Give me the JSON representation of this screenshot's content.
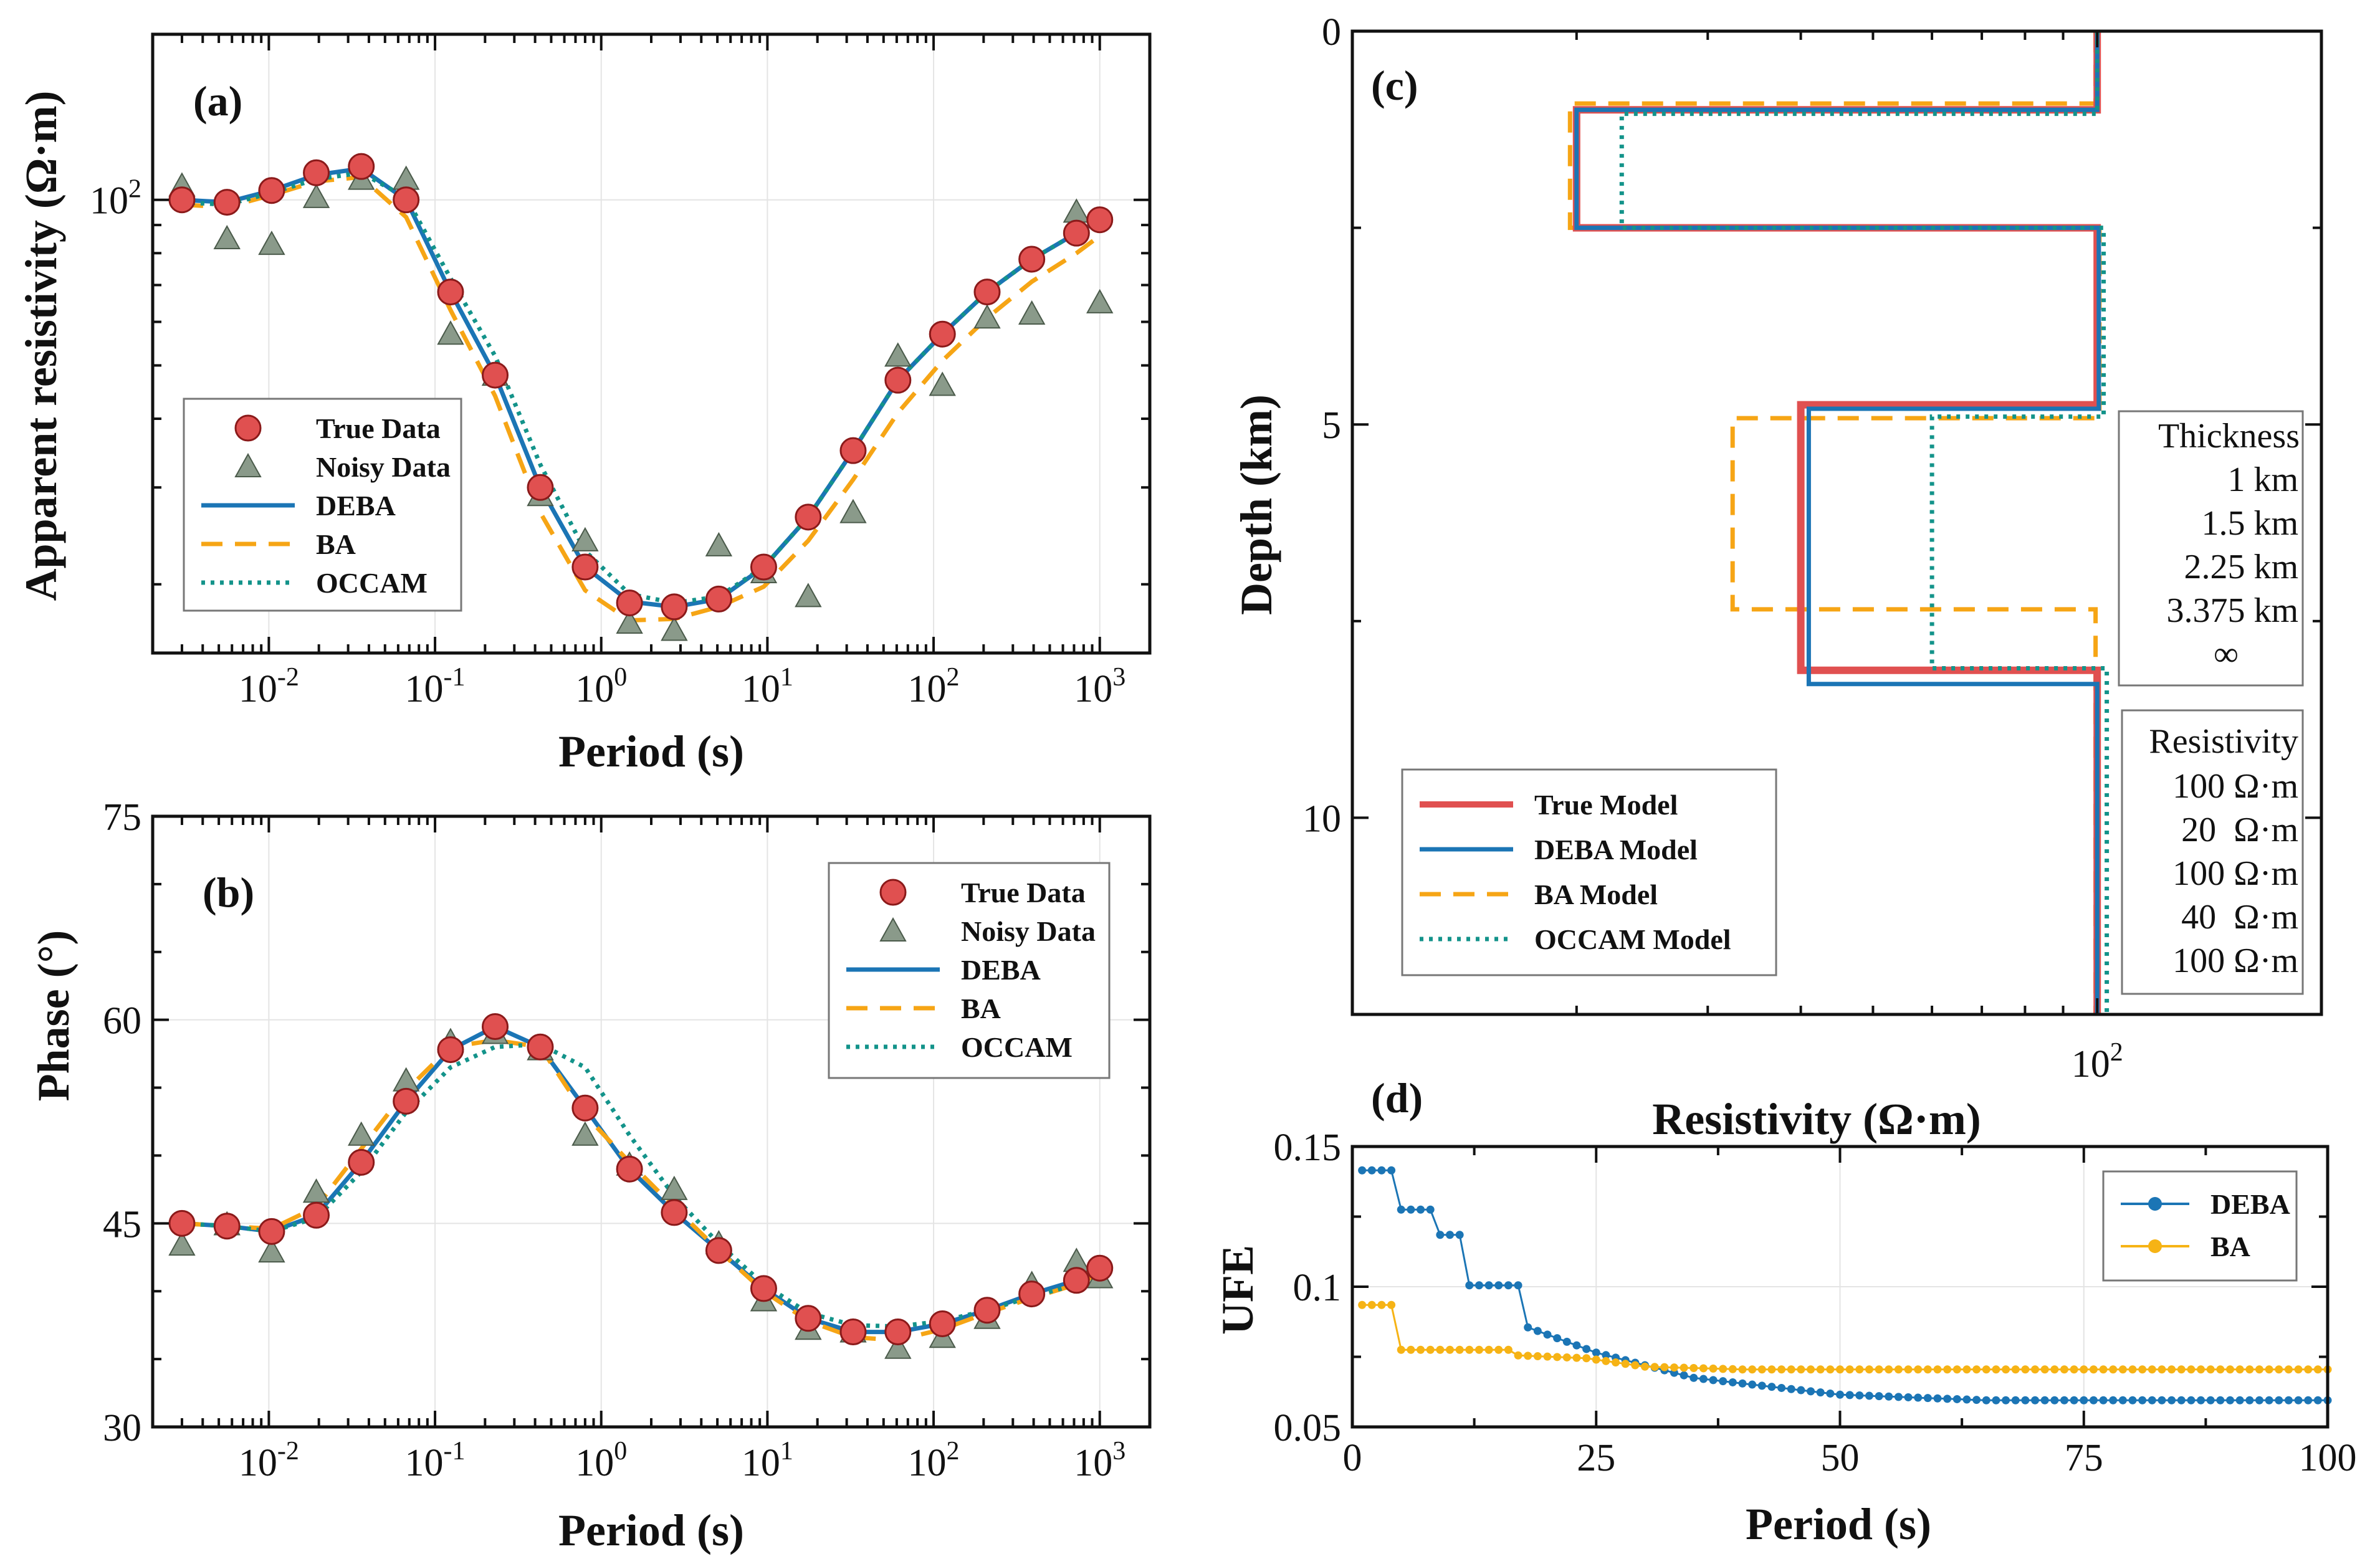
{
  "colors": {
    "true": "#e05050",
    "true_edge": "#8b1a1a",
    "noisy": "#8a9a8a",
    "deba": "#1b75b5",
    "ba": "#f6a515",
    "occam": "#13938a",
    "ufe_deba": "#1b75b5",
    "ufe_ba": "#f6b315"
  },
  "chart_data": [
    {
      "panel": "a",
      "type": "line",
      "panel_label": "(a)",
      "xlabel": "Period (s)",
      "ylabel": "Apparent resistivity (Ω·m)",
      "xscale": "log",
      "yscale": "log",
      "xlim": [
        0.002,
        2000
      ],
      "ylim": [
        15,
        200
      ],
      "xticks": [
        "10-2",
        "10-1",
        "100",
        "101",
        "102",
        "103"
      ],
      "yticks": [
        "102"
      ],
      "grid": true,
      "legend_position": "center-left",
      "legend": [
        "True Data",
        "Noisy Data",
        "DEBA",
        "BA",
        "OCCAM"
      ],
      "x": [
        0.003,
        0.0056,
        0.0104,
        0.0193,
        0.036,
        0.067,
        0.124,
        0.23,
        0.43,
        0.8,
        1.48,
        2.75,
        5.1,
        9.5,
        17.6,
        32.8,
        61,
        113,
        210,
        390,
        724,
        1000
      ],
      "series": [
        {
          "name": "True Data",
          "style": "marker-circle",
          "values": [
            100,
            99,
            104,
            112,
            115,
            100,
            68,
            48,
            30,
            21.5,
            18.5,
            18.2,
            18.8,
            21.5,
            26.5,
            35,
            47,
            57,
            68,
            78,
            87,
            92
          ]
        },
        {
          "name": "Noisy Data",
          "style": "marker-triangle",
          "values": [
            106,
            85,
            83,
            101,
            109,
            109,
            57,
            48,
            29,
            24,
            17,
            16.5,
            23.5,
            21,
            19,
            27,
            52,
            46,
            61,
            62,
            95,
            65
          ]
        },
        {
          "name": "DEBA",
          "style": "solid",
          "values": [
            100,
            99,
            104,
            111,
            114,
            100,
            68,
            48,
            30,
            21.5,
            18.6,
            18.2,
            18.8,
            21.5,
            26.5,
            35,
            47,
            57,
            68,
            78,
            87,
            92
          ]
        },
        {
          "name": "BA",
          "style": "dashed",
          "values": [
            98,
            97,
            102,
            108,
            110,
            93,
            63,
            44,
            27,
            19.5,
            17.2,
            17.3,
            18.2,
            19.8,
            24,
            31,
            41,
            51,
            61,
            71,
            80,
            86
          ]
        },
        {
          "name": "OCCAM",
          "style": "dotted",
          "values": [
            99,
            98,
            103,
            109,
            112,
            101,
            72,
            52,
            33,
            23,
            19.2,
            18.5,
            19,
            21.5,
            26.5,
            35,
            47,
            57,
            68,
            78,
            87,
            92
          ]
        }
      ]
    },
    {
      "panel": "b",
      "type": "line",
      "panel_label": "(b)",
      "xlabel": "Period (s)",
      "ylabel": "Phase (°)",
      "xscale": "log",
      "yscale": "linear",
      "xlim": [
        0.002,
        2000
      ],
      "ylim": [
        30,
        75
      ],
      "xticks": [
        "10-2",
        "10-1",
        "100",
        "101",
        "102",
        "103"
      ],
      "yticks": [
        "30",
        "45",
        "60",
        "75"
      ],
      "grid": true,
      "legend_position": "top-right",
      "legend": [
        "True Data",
        "Noisy Data",
        "DEBA",
        "BA",
        "OCCAM"
      ],
      "x": [
        0.003,
        0.0056,
        0.0104,
        0.0193,
        0.036,
        0.067,
        0.124,
        0.23,
        0.43,
        0.8,
        1.48,
        2.75,
        5.1,
        9.5,
        17.6,
        32.8,
        61,
        113,
        210,
        390,
        724,
        1000
      ],
      "series": [
        {
          "name": "True Data",
          "style": "marker-circle",
          "values": [
            45,
            44.8,
            44.4,
            45.6,
            49.5,
            54,
            57.8,
            59.5,
            58,
            53.5,
            49,
            45.8,
            43,
            40.2,
            38,
            37,
            37,
            37.6,
            38.6,
            39.8,
            40.8,
            41.7
          ]
        },
        {
          "name": "Noisy Data",
          "style": "marker-triangle",
          "values": [
            43.4,
            44.9,
            42.9,
            47.3,
            51.5,
            55.5,
            58.4,
            59,
            57.8,
            51.5,
            49.3,
            47.5,
            43.5,
            39.3,
            37.2,
            37,
            35.8,
            36.6,
            38,
            40.5,
            42.2,
            41
          ]
        },
        {
          "name": "DEBA",
          "style": "solid",
          "values": [
            45,
            44.8,
            44.4,
            45.6,
            49.5,
            54,
            57.8,
            59.5,
            58,
            53.5,
            49,
            45.8,
            43,
            40.2,
            38,
            37,
            37,
            37.6,
            38.6,
            39.8,
            40.8,
            41.7
          ]
        },
        {
          "name": "BA",
          "style": "dashed",
          "values": [
            45,
            44.8,
            44.6,
            46.2,
            50.5,
            54.8,
            58,
            58.5,
            58,
            53,
            49.5,
            46.2,
            43,
            40,
            37.8,
            36.6,
            36.4,
            37.2,
            38.4,
            39.5,
            40.5,
            41.3
          ]
        },
        {
          "name": "OCCAM",
          "style": "dotted",
          "values": [
            45,
            44.8,
            44.4,
            45.4,
            48.8,
            53.2,
            56.5,
            58,
            58.2,
            56.5,
            51.5,
            47,
            43.5,
            40.5,
            38.4,
            37.5,
            37.4,
            37.8,
            38.6,
            39.6,
            40.5,
            41.2
          ]
        }
      ]
    },
    {
      "panel": "c",
      "type": "line",
      "panel_label": "(c)",
      "xlabel": "Resistivity (Ω·m)",
      "ylabel": "Depth (km)",
      "xscale": "log",
      "yscale": "linear-inverted",
      "xlim": [
        10,
        200
      ],
      "ylim": [
        0,
        12.5
      ],
      "xticks": [
        "102"
      ],
      "yticks": [
        "0",
        "5",
        "10"
      ],
      "grid": false,
      "legend_position": "bottom-left",
      "legend": [
        "True Model",
        "DEBA Model",
        "BA Model",
        "OCCAM Model"
      ],
      "series": [
        {
          "name": "True Model",
          "style": "solid-thick",
          "resistivity": [
            100,
            100,
            20,
            20,
            100,
            100,
            40,
            40,
            100,
            100
          ],
          "depth": [
            0,
            1,
            1,
            2.5,
            2.5,
            4.75,
            4.75,
            8.125,
            8.125,
            12.5
          ]
        },
        {
          "name": "DEBA Model",
          "style": "solid",
          "resistivity": [
            100,
            100,
            20,
            20,
            100.5,
            100.5,
            41,
            41,
            100,
            100
          ],
          "depth": [
            0,
            1,
            1,
            2.5,
            2.5,
            4.8,
            4.8,
            8.3,
            8.3,
            12.5
          ]
        },
        {
          "name": "BA Model",
          "style": "dashed",
          "resistivity": [
            99.5,
            99.5,
            19.6,
            19.6,
            100.7,
            100.7,
            32.4,
            32.4,
            99.5,
            99.5
          ],
          "depth": [
            0,
            0.92,
            0.92,
            2.5,
            2.5,
            4.92,
            4.92,
            7.35,
            7.35,
            12.5
          ]
        },
        {
          "name": "OCCAM Model",
          "style": "dotted",
          "resistivity": [
            100,
            100,
            23,
            23,
            102,
            102,
            60,
            60,
            103,
            103
          ],
          "depth": [
            0,
            1.05,
            1.05,
            2.5,
            2.5,
            4.9,
            4.9,
            8.1,
            8.1,
            12.5
          ]
        }
      ]
    },
    {
      "panel": "d",
      "type": "line",
      "panel_label": "(d)",
      "xlabel": "Period (s)",
      "ylabel": "UFE",
      "xscale": "linear",
      "yscale": "linear",
      "xlim": [
        0,
        100
      ],
      "ylim": [
        0.05,
        0.15
      ],
      "xticks": [
        "0",
        "25",
        "50",
        "75",
        "100"
      ],
      "yticks": [
        "0.05",
        "0.1",
        "0.15"
      ],
      "grid": true,
      "legend_position": "top-right",
      "legend": [
        "DEBA",
        "BA"
      ],
      "series": [
        {
          "name": "DEBA",
          "style": "line-dots",
          "breakpoints": [
            [
              1,
              0.1415
            ],
            [
              4,
              0.1415
            ],
            [
              5,
              0.1275
            ],
            [
              8,
              0.1275
            ],
            [
              9,
              0.1185
            ],
            [
              11,
              0.1185
            ],
            [
              12,
              0.1005
            ],
            [
              17,
              0.1005
            ],
            [
              18,
              0.0855
            ],
            [
              25,
              0.0765
            ],
            [
              35,
              0.0675
            ],
            [
              50,
              0.0615
            ],
            [
              65,
              0.0595
            ],
            [
              100,
              0.0595
            ]
          ]
        },
        {
          "name": "BA",
          "style": "line-dots",
          "breakpoints": [
            [
              1,
              0.0935
            ],
            [
              4,
              0.0935
            ],
            [
              5,
              0.0775
            ],
            [
              16,
              0.0775
            ],
            [
              17,
              0.0755
            ],
            [
              24,
              0.0745
            ],
            [
              30,
              0.0715
            ],
            [
              40,
              0.0705
            ],
            [
              100,
              0.0705
            ]
          ]
        }
      ]
    }
  ],
  "info_box": {
    "thickness_title": "Thickness",
    "thickness": [
      "1 km",
      "1.5 km",
      "2.25 km",
      "3.375 km",
      "∞"
    ],
    "resistivity_title": "Resistivity",
    "resistivity": [
      "100 Ω·m",
      "20  Ω·m",
      "100 Ω·m",
      "40  Ω·m",
      "100 Ω·m"
    ]
  }
}
